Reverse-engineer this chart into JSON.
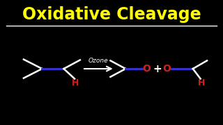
{
  "title": "Oxidative Cleavage",
  "title_color": "#FFFF00",
  "bg_color": "#000000",
  "line_color": "#FFFFFF",
  "blue_color": "#3333CC",
  "red_color": "#CC2222",
  "ozone_text": "Ozone",
  "plus_text": "+",
  "H_text": "H",
  "O_text": "O",
  "title_fontsize": 17,
  "underline_color": "#FFFFFF",
  "lw": 1.8,
  "lw_blue": 2.2
}
